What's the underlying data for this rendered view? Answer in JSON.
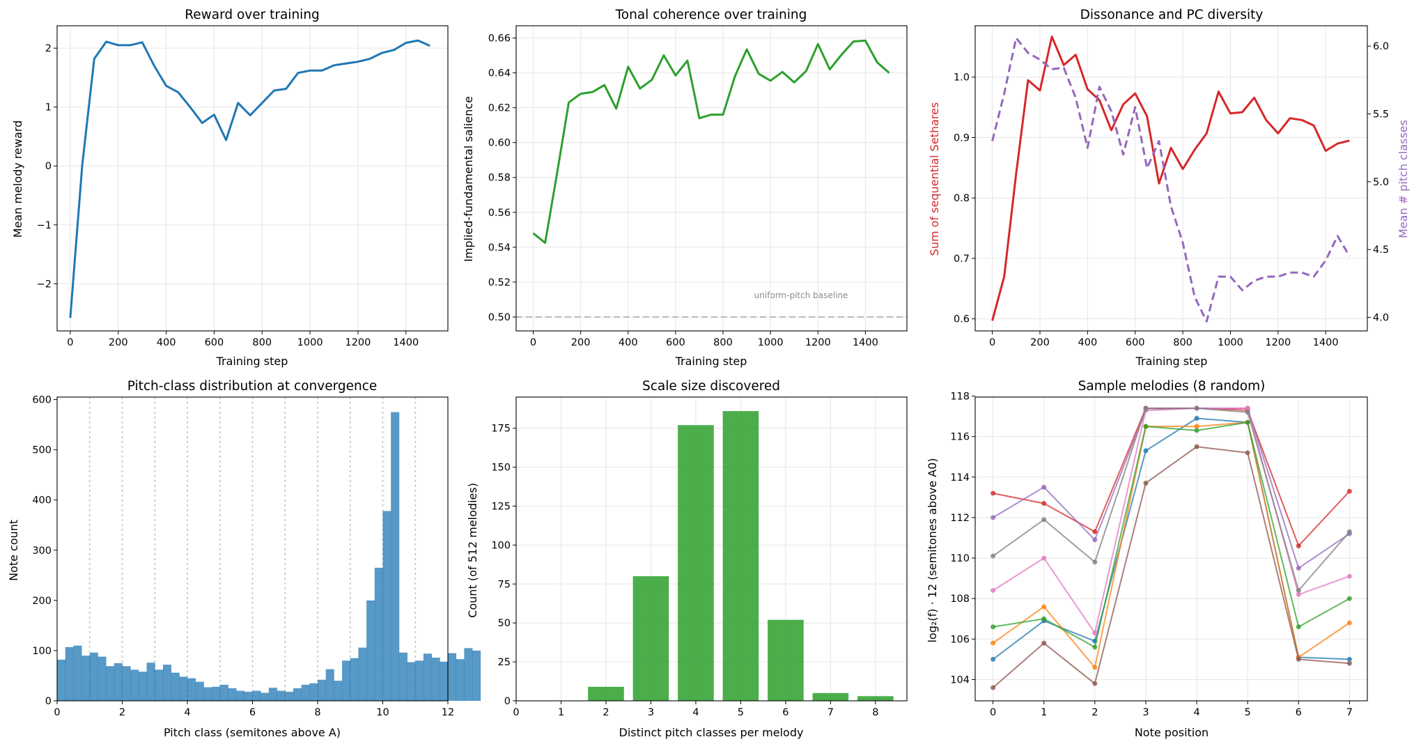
{
  "chart_data": [
    {
      "id": "reward",
      "type": "line",
      "title": "Reward over training",
      "xlabel": "Training step",
      "ylabel": "Mean melody reward",
      "xlim": [
        -55,
        1575
      ],
      "ylim": [
        -2.8,
        2.38
      ],
      "xticks": [
        0,
        200,
        400,
        600,
        800,
        1000,
        1200,
        1400
      ],
      "yticks": [
        -2,
        -1,
        0,
        1,
        2
      ],
      "grid": true,
      "colors": {
        "line": "#1f77b4"
      },
      "series": [
        {
          "x": [
            0,
            50,
            100,
            150,
            200,
            250,
            300,
            350,
            400,
            450,
            500,
            550,
            600,
            650,
            700,
            750,
            800,
            850,
            900,
            950,
            1000,
            1050,
            1100,
            1150,
            1200,
            1250,
            1300,
            1350,
            1400,
            1450,
            1500
          ],
          "y": [
            -2.58,
            0.02,
            1.82,
            2.11,
            2.05,
            2.05,
            2.1,
            1.7,
            1.36,
            1.25,
            1.0,
            0.73,
            0.87,
            0.44,
            1.07,
            0.86,
            1.07,
            1.28,
            1.31,
            1.58,
            1.62,
            1.62,
            1.71,
            1.74,
            1.77,
            1.82,
            1.92,
            1.97,
            2.09,
            2.13,
            2.04
          ]
        }
      ]
    },
    {
      "id": "tonal",
      "type": "line",
      "title": "Tonal coherence over training",
      "xlabel": "Training step",
      "ylabel": "Implied-fundamental salience",
      "xlim": [
        -72,
        1575
      ],
      "ylim": [
        0.492,
        0.667
      ],
      "xticks": [
        0,
        200,
        400,
        600,
        800,
        1000,
        1200,
        1400
      ],
      "yticks": [
        0.5,
        0.52,
        0.54,
        0.56,
        0.58,
        0.6,
        0.62,
        0.64,
        0.66
      ],
      "grid": true,
      "colors": {
        "line": "#2ca02c",
        "baseline": "#bbbbbb"
      },
      "baseline": {
        "y": 0.5,
        "label": "uniform-pitch baseline"
      },
      "series": [
        {
          "x": [
            0,
            50,
            100,
            150,
            200,
            250,
            300,
            350,
            400,
            450,
            500,
            550,
            600,
            650,
            700,
            750,
            800,
            850,
            900,
            950,
            1000,
            1050,
            1100,
            1150,
            1200,
            1250,
            1300,
            1350,
            1400,
            1450,
            1500
          ],
          "y": [
            0.548,
            0.5425,
            0.582,
            0.623,
            0.628,
            0.629,
            0.633,
            0.6195,
            0.6435,
            0.631,
            0.636,
            0.65,
            0.6385,
            0.647,
            0.614,
            0.616,
            0.616,
            0.638,
            0.6535,
            0.6395,
            0.6355,
            0.6405,
            0.6345,
            0.641,
            0.6565,
            0.642,
            0.6505,
            0.658,
            0.6585,
            0.646,
            0.64
          ]
        }
      ]
    },
    {
      "id": "dissonance",
      "type": "line",
      "title": "Dissonance and PC diversity",
      "xlabel": "Training step",
      "ylabel": "Sum of sequential Sethares",
      "ylabel_right": "Mean # pitch classes",
      "xlim": [
        -72,
        1575
      ],
      "ylim": [
        0.58,
        1.085
      ],
      "ylim_right": [
        3.9,
        6.15
      ],
      "xticks": [
        0,
        200,
        400,
        600,
        800,
        1000,
        1200,
        1400
      ],
      "yticks": [
        0.6,
        0.7,
        0.8,
        0.9,
        1.0
      ],
      "yticks_right": [
        4.0,
        4.5,
        5.0,
        5.5,
        6.0
      ],
      "grid": true,
      "colors": {
        "left": "#d62728",
        "right": "#9467bd"
      },
      "series": [
        {
          "axis": "left",
          "x": [
            0,
            50,
            100,
            150,
            200,
            250,
            300,
            350,
            400,
            450,
            500,
            550,
            600,
            650,
            700,
            750,
            800,
            850,
            900,
            950,
            1000,
            1050,
            1100,
            1150,
            1200,
            1250,
            1300,
            1350,
            1400,
            1450,
            1500
          ],
          "y": [
            0.597,
            0.67,
            0.84,
            0.995,
            0.978,
            1.067,
            1.02,
            1.037,
            0.98,
            0.962,
            0.912,
            0.955,
            0.973,
            0.935,
            0.824,
            0.883,
            0.848,
            0.88,
            0.907,
            0.976,
            0.94,
            0.942,
            0.966,
            0.929,
            0.907,
            0.932,
            0.929,
            0.92,
            0.878,
            0.89,
            0.895
          ]
        },
        {
          "axis": "right",
          "x": [
            0,
            50,
            100,
            150,
            200,
            250,
            300,
            350,
            400,
            450,
            500,
            550,
            600,
            650,
            700,
            750,
            800,
            850,
            900,
            950,
            1000,
            1050,
            1100,
            1150,
            1200,
            1250,
            1300,
            1350,
            1400,
            1450,
            1500
          ],
          "y": [
            5.3,
            5.65,
            6.06,
            5.95,
            5.9,
            5.83,
            5.84,
            5.62,
            5.25,
            5.7,
            5.52,
            5.2,
            5.55,
            5.1,
            5.3,
            4.82,
            4.55,
            4.15,
            3.97,
            4.3,
            4.3,
            4.2,
            4.27,
            4.3,
            4.3,
            4.33,
            4.33,
            4.3,
            4.42,
            4.6,
            4.45
          ]
        }
      ]
    },
    {
      "id": "pitchclass",
      "type": "bar",
      "title": "Pitch-class distribution at convergence",
      "xlabel": "Pitch class (semitones above A)",
      "ylabel": "Note count",
      "xlim": [
        0,
        12
      ],
      "ylim": [
        0,
        605
      ],
      "xticks": [
        0,
        2,
        4,
        6,
        8,
        10,
        12
      ],
      "yticks": [
        0,
        100,
        200,
        300,
        400,
        500,
        600
      ],
      "bin_width": 0.25,
      "colors": {
        "bar": "#1f77b4",
        "semitone_line": "#cccccc"
      },
      "semitone_lines": [
        1,
        2,
        3,
        4,
        5,
        6,
        7,
        8,
        9,
        10,
        11
      ],
      "values": [
        82,
        107,
        110,
        90,
        96,
        88,
        69,
        75,
        69,
        62,
        58,
        76,
        62,
        72,
        56,
        48,
        45,
        38,
        27,
        28,
        32,
        25,
        20,
        18,
        20,
        16,
        26,
        20,
        18,
        25,
        32,
        35,
        42,
        63,
        40,
        80,
        85,
        106,
        200,
        265,
        378,
        575,
        96,
        77,
        80,
        94,
        86,
        78,
        95,
        83,
        105,
        100
      ]
    },
    {
      "id": "scalesize",
      "type": "bar",
      "title": "Scale size discovered",
      "xlabel": "Distinct pitch classes per melody",
      "ylabel": "Count (of 512 melodies)",
      "xlim": [
        0,
        8.7
      ],
      "ylim": [
        0,
        195
      ],
      "xticks": [
        0,
        1,
        2,
        3,
        4,
        5,
        6,
        7,
        8
      ],
      "yticks": [
        0,
        25,
        50,
        75,
        100,
        125,
        150,
        175
      ],
      "grid": true,
      "colors": {
        "bar": "#2ca02c"
      },
      "categories": [
        0,
        1,
        2,
        3,
        4,
        5,
        6,
        7,
        8
      ],
      "values": [
        0,
        0,
        9,
        80,
        177,
        186,
        52,
        5,
        3
      ]
    },
    {
      "id": "samples",
      "type": "line",
      "title": "Sample melodies (8 random)",
      "xlabel": "Note position",
      "ylabel": "log₂(f) · 12  (semitones above A0)",
      "xlim": [
        -0.35,
        7.35
      ],
      "ylim": [
        102.95,
        117.95
      ],
      "xticks": [
        0,
        1,
        2,
        3,
        4,
        5,
        6,
        7
      ],
      "yticks": [
        104,
        106,
        108,
        110,
        112,
        114,
        116,
        118
      ],
      "grid": true,
      "x": [
        0,
        1,
        2,
        3,
        4,
        5,
        6,
        7
      ],
      "series": [
        {
          "color": "#1f77b4",
          "values": [
            105.0,
            106.9,
            105.9,
            115.3,
            116.9,
            116.7,
            105.1,
            105.0
          ]
        },
        {
          "color": "#ff7f0e",
          "values": [
            105.8,
            107.6,
            104.6,
            116.5,
            116.5,
            116.7,
            105.1,
            106.8
          ]
        },
        {
          "color": "#2ca02c",
          "values": [
            106.6,
            107.0,
            105.6,
            116.5,
            116.3,
            116.7,
            106.6,
            108.0
          ]
        },
        {
          "color": "#d62728",
          "values": [
            113.2,
            112.7,
            111.3,
            117.4,
            117.4,
            117.3,
            110.6,
            113.3
          ]
        },
        {
          "color": "#9467bd",
          "values": [
            112.0,
            113.5,
            110.9,
            117.3,
            117.4,
            117.4,
            109.5,
            111.2
          ]
        },
        {
          "color": "#8c564b",
          "values": [
            103.6,
            105.8,
            103.8,
            113.7,
            115.5,
            115.2,
            105.0,
            104.8
          ]
        },
        {
          "color": "#e377c2",
          "values": [
            108.4,
            110.0,
            106.3,
            117.3,
            117.4,
            117.4,
            108.2,
            109.1
          ]
        },
        {
          "color": "#7f7f7f",
          "values": [
            110.1,
            111.9,
            109.8,
            117.4,
            117.4,
            117.2,
            108.4,
            111.3
          ]
        }
      ]
    }
  ]
}
